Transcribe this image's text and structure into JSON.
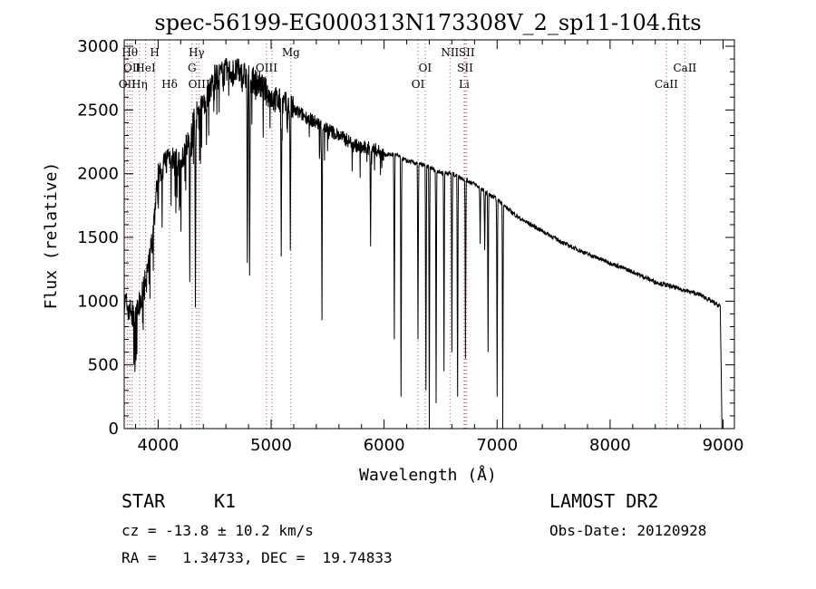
{
  "chart_data": {
    "type": "line",
    "title": "spec-56199-EG000313N173308V_2_sp11-104.fits",
    "xlabel": "Wavelength (Å)",
    "ylabel": "Flux (relative)",
    "xlim": [
      3700,
      9100
    ],
    "ylim": [
      0,
      3050
    ],
    "xticks": [
      4000,
      5000,
      6000,
      7000,
      8000,
      9000
    ],
    "yticks": [
      0,
      500,
      1000,
      1500,
      2000,
      2500,
      3000
    ],
    "line_color": "#000000",
    "marker_color": "#b05050",
    "spectrum_continuum": {
      "x": [
        3700,
        3800,
        3900,
        3950,
        4000,
        4100,
        4200,
        4300,
        4400,
        4500,
        4600,
        4700,
        4800,
        4900,
        5000,
        5100,
        5200,
        5300,
        5400,
        5500,
        5600,
        5700,
        5800,
        5900,
        6000,
        6100,
        6200,
        6300,
        6400,
        6500,
        6600,
        6700,
        6800,
        6900,
        7000,
        7100,
        7200,
        7400,
        7600,
        7800,
        8000,
        8200,
        8400,
        8600,
        8800,
        8950,
        8975,
        8990
      ],
      "y": [
        1000,
        850,
        1200,
        1500,
        2000,
        2150,
        2050,
        2400,
        2550,
        2750,
        2800,
        2800,
        2750,
        2700,
        2600,
        2550,
        2500,
        2450,
        2400,
        2350,
        2300,
        2250,
        2200,
        2200,
        2150,
        2150,
        2100,
        2080,
        2050,
        2010,
        2000,
        1960,
        1920,
        1850,
        1800,
        1720,
        1650,
        1550,
        1450,
        1370,
        1300,
        1230,
        1150,
        1100,
        1050,
        970,
        960,
        0
      ]
    },
    "absorption_features": [
      {
        "x": 4280,
        "depth_to": 1150
      },
      {
        "x": 4330,
        "depth_to": 950
      },
      {
        "x": 4790,
        "depth_to": 1300
      },
      {
        "x": 4810,
        "depth_to": 1200
      },
      {
        "x": 5090,
        "depth_to": 1350
      },
      {
        "x": 5170,
        "depth_to": 1400
      },
      {
        "x": 5450,
        "depth_to": 850
      },
      {
        "x": 5880,
        "depth_to": 1430
      },
      {
        "x": 6090,
        "depth_to": 700
      },
      {
        "x": 6150,
        "depth_to": 250
      },
      {
        "x": 6300,
        "depth_to": 700
      },
      {
        "x": 6370,
        "depth_to": 300
      },
      {
        "x": 6400,
        "depth_to": 0
      },
      {
        "x": 6460,
        "depth_to": 200
      },
      {
        "x": 6530,
        "depth_to": 450
      },
      {
        "x": 6600,
        "depth_to": 600
      },
      {
        "x": 6650,
        "depth_to": 250
      },
      {
        "x": 6720,
        "depth_to": 550
      },
      {
        "x": 6850,
        "depth_to": 1450
      },
      {
        "x": 6890,
        "depth_to": 1400
      },
      {
        "x": 6920,
        "depth_to": 600
      },
      {
        "x": 7000,
        "depth_to": 250
      },
      {
        "x": 7050,
        "depth_to": 0
      }
    ],
    "line_markers": [
      {
        "x": 3727,
        "label": "OII",
        "row": 2
      },
      {
        "x": 3750,
        "label": "Hθ",
        "row": 0
      },
      {
        "x": 3770,
        "label": "OII",
        "row": 1
      },
      {
        "x": 3835,
        "label": "Hη",
        "row": 2
      },
      {
        "x": 3889,
        "label": "HeI",
        "row": 1
      },
      {
        "x": 3970,
        "label": "H",
        "row": 0
      },
      {
        "x": 4101,
        "label": "Hδ",
        "row": 2
      },
      {
        "x": 4300,
        "label": "G",
        "row": 1
      },
      {
        "x": 4340,
        "label": "Hγ",
        "row": 0
      },
      {
        "x": 4363,
        "label": "OIII",
        "row": 2
      },
      {
        "x": 4959,
        "label": "OIII",
        "row": 1
      },
      {
        "x": 5007,
        "label": "",
        "row": 1
      },
      {
        "x": 5175,
        "label": "Mg",
        "row": 0
      },
      {
        "x": 6300,
        "label": "OI",
        "row": 2
      },
      {
        "x": 6363,
        "label": "OI",
        "row": 1
      },
      {
        "x": 6583,
        "label": "NII",
        "row": 0
      },
      {
        "x": 6708,
        "label": "Li",
        "row": 2
      },
      {
        "x": 6717,
        "label": "SII",
        "row": 1
      },
      {
        "x": 6731,
        "label": "SII",
        "row": 0
      },
      {
        "x": 8498,
        "label": "CaII",
        "row": 2
      },
      {
        "x": 8662,
        "label": "CaII",
        "row": 1
      }
    ]
  },
  "info": {
    "class_label": "STAR",
    "subclass_label": "K1",
    "survey": "LAMOST DR2",
    "redshift": "cz = -13.8 ± 10.2 km/s",
    "obs_date": "Obs-Date: 20120928",
    "coords": "RA =   1.34733, DEC =  19.74833"
  }
}
